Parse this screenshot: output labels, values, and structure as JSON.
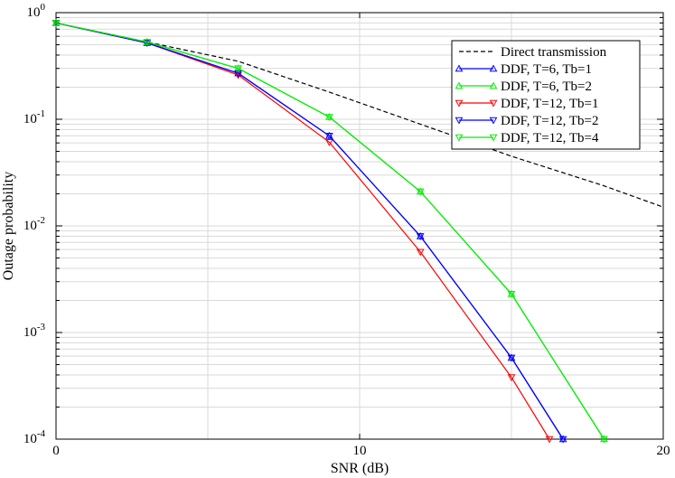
{
  "chart_data": {
    "type": "line",
    "xlabel": "SNR (dB)",
    "ylabel": "Outage probability",
    "xlim": [
      0,
      20
    ],
    "ylim": [
      0.0001,
      1
    ],
    "yscale": "log",
    "grid": true,
    "legend_position": "top-right",
    "x_ticks": [
      {
        "value": 0,
        "label": "0"
      },
      {
        "value": 10,
        "label": "10"
      },
      {
        "value": 20,
        "label": "20"
      }
    ],
    "y_ticks": [
      {
        "exp": 0,
        "base": "10",
        "power": "0"
      },
      {
        "exp": -1,
        "base": "10",
        "power": "-1"
      },
      {
        "exp": -2,
        "base": "10",
        "power": "-2"
      },
      {
        "exp": -3,
        "base": "10",
        "power": "-3"
      },
      {
        "exp": -4,
        "base": "10",
        "power": "-4"
      }
    ],
    "series": [
      {
        "name": "Direct transmission",
        "color": "#000000",
        "dash": true,
        "marker": "none",
        "x": [
          0,
          3,
          6,
          9,
          12,
          15,
          18,
          20
        ],
        "y": [
          0.8,
          0.53,
          0.35,
          0.18,
          0.09,
          0.045,
          0.024,
          0.015
        ]
      },
      {
        "name": "DDF, T=6, Tb=1",
        "color": "#0000ff",
        "dash": false,
        "marker": "triangle-up",
        "x": [
          0,
          3,
          6,
          9,
          12,
          15,
          16.7
        ],
        "y": [
          0.8,
          0.52,
          0.27,
          0.07,
          0.008,
          0.00058,
          0.0001
        ]
      },
      {
        "name": "DDF, T=6, Tb=2",
        "color": "#00ee00",
        "dash": false,
        "marker": "triangle-up",
        "x": [
          0,
          3,
          6,
          9,
          12,
          15,
          18.05
        ],
        "y": [
          0.8,
          0.53,
          0.3,
          0.105,
          0.021,
          0.0023,
          0.0001
        ]
      },
      {
        "name": "DDF, T=12, Tb=1",
        "color": "#ff0000",
        "dash": false,
        "marker": "triangle-down",
        "x": [
          0,
          3,
          6,
          9,
          12,
          15,
          16.25
        ],
        "y": [
          0.8,
          0.52,
          0.26,
          0.061,
          0.0057,
          0.00038,
          0.0001
        ]
      },
      {
        "name": "DDF, T=12, Tb=2",
        "color": "#0000ff",
        "dash": false,
        "marker": "triangle-down",
        "x": [
          0,
          3,
          6,
          9,
          12,
          15,
          16.7
        ],
        "y": [
          0.8,
          0.52,
          0.27,
          0.07,
          0.008,
          0.00058,
          0.0001
        ]
      },
      {
        "name": "DDF, T=12, Tb=4",
        "color": "#00ee00",
        "dash": false,
        "marker": "triangle-down",
        "x": [
          0,
          3,
          6,
          9,
          12,
          15,
          18.05
        ],
        "y": [
          0.8,
          0.53,
          0.3,
          0.105,
          0.021,
          0.0023,
          0.0001
        ]
      }
    ]
  }
}
